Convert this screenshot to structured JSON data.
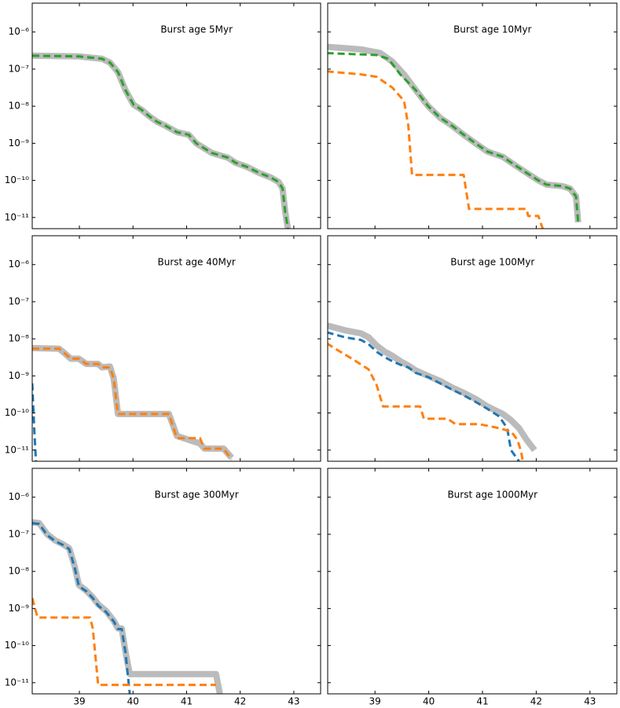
{
  "chart_data": [
    {
      "type": "line",
      "title": "Burst age 5Myr",
      "yscale": "log",
      "xlim": [
        38.12,
        43.5
      ],
      "ylim": [
        5e-12,
        6e-06
      ],
      "yticks": [
        {
          "value": 1e-06,
          "label": "10⁻⁶"
        },
        {
          "value": 1e-07,
          "label": "10⁻⁷"
        },
        {
          "value": 1e-08,
          "label": "10⁻⁸"
        },
        {
          "value": 1e-09,
          "label": "10⁻⁹"
        },
        {
          "value": 1e-10,
          "label": "10⁻¹⁰"
        },
        {
          "value": 1e-11,
          "label": "10⁻¹¹"
        }
      ],
      "series": [
        {
          "color": "#bbbbbb",
          "linestyle": "solid",
          "x": [
            38.12,
            38.99,
            39.42,
            39.57,
            39.72,
            39.86,
            40.01,
            40.16,
            40.3,
            40.45,
            40.6,
            40.82,
            41.04,
            41.18,
            41.47,
            41.77,
            41.91,
            42.13,
            42.35,
            42.57,
            42.72,
            42.79,
            42.84,
            42.89
          ],
          "values": [
            2.3e-07,
            2.2e-07,
            1.9e-07,
            1.5e-07,
            8.3e-08,
            2.7e-08,
            1.1e-08,
            8e-09,
            5.4e-09,
            3.8e-09,
            3e-09,
            2e-09,
            1.7e-09,
            1e-09,
            5.5e-10,
            4.1e-10,
            3e-10,
            2.3e-10,
            1.6e-10,
            1.2e-10,
            9e-11,
            6e-11,
            1.4e-11,
            5e-12
          ]
        },
        {
          "color": "#2ca02c",
          "linestyle": "dashed",
          "x": [
            38.12,
            38.99,
            39.42,
            39.57,
            39.72,
            39.86,
            40.01,
            40.16,
            40.3,
            40.45,
            40.6,
            40.82,
            41.04,
            41.18,
            41.47,
            41.77,
            41.91,
            42.13,
            42.35,
            42.57,
            42.72,
            42.79,
            42.84,
            42.89
          ],
          "values": [
            2.3e-07,
            2.2e-07,
            1.9e-07,
            1.5e-07,
            8.3e-08,
            2.7e-08,
            1.1e-08,
            8e-09,
            5.4e-09,
            3.8e-09,
            3e-09,
            2e-09,
            1.7e-09,
            1e-09,
            5.5e-10,
            4.1e-10,
            3e-10,
            2.3e-10,
            1.6e-10,
            1.2e-10,
            9e-11,
            6e-11,
            1.4e-11,
            5e-12
          ]
        }
      ]
    },
    {
      "type": "line",
      "title": "Burst age 10Myr",
      "yscale": "log",
      "xlim": [
        38.12,
        43.5
      ],
      "ylim": [
        5e-12,
        6e-06
      ],
      "series": [
        {
          "color": "#bbbbbb",
          "linestyle": "solid",
          "x": [
            38.1,
            38.74,
            39.1,
            39.32,
            39.54,
            39.76,
            39.99,
            40.21,
            40.43,
            40.65,
            40.87,
            41.09,
            41.38,
            41.6,
            41.82,
            42.04,
            42.19,
            42.49,
            42.63,
            42.74,
            42.78
          ],
          "values": [
            4e-07,
            3.4e-07,
            2.7e-07,
            1.6e-07,
            7.2e-08,
            2.7e-08,
            1e-08,
            4.9e-09,
            3e-09,
            1.7e-09,
            1e-09,
            6e-10,
            4.3e-10,
            2.6e-10,
            1.6e-10,
            1e-10,
            7.7e-11,
            7e-11,
            6e-11,
            3.7e-11,
            7.4e-12
          ]
        },
        {
          "color": "#2ca02c",
          "linestyle": "dashed",
          "x": [
            38.1,
            39.03,
            39.25,
            39.47,
            39.76,
            39.99,
            40.21,
            40.43,
            40.65,
            40.87,
            41.09,
            41.38,
            41.6,
            41.82,
            42.04,
            42.19,
            42.49,
            42.63,
            42.74,
            42.78
          ],
          "values": [
            2.7e-07,
            2.4e-07,
            1.9e-07,
            7.2e-08,
            2.7e-08,
            1e-08,
            4.9e-09,
            3e-09,
            1.7e-09,
            1e-09,
            6e-10,
            4.3e-10,
            2.6e-10,
            1.6e-10,
            1e-10,
            7.7e-11,
            7e-11,
            6e-11,
            3.7e-11,
            7.4e-12
          ]
        },
        {
          "color": "#ff7f0e",
          "linestyle": "dashed",
          "x": [
            38.1,
            38.74,
            39.03,
            39.32,
            39.54,
            39.62,
            39.69,
            40.65,
            40.75,
            41.82,
            41.85,
            42.04,
            42.12
          ],
          "values": [
            8.7e-08,
            7.2e-08,
            6.2e-08,
            3.2e-08,
            1.4e-08,
            3e-09,
            1.4e-10,
            1.4e-10,
            1.7e-11,
            1.7e-11,
            1.1e-11,
            1.1e-11,
            5e-12
          ]
        }
      ]
    },
    {
      "type": "line",
      "title": "Burst age 40Myr",
      "yscale": "log",
      "xlim": [
        38.12,
        43.5
      ],
      "ylim": [
        5e-12,
        6e-06
      ],
      "yticks": [
        {
          "value": 1e-06,
          "label": "10⁻⁶"
        },
        {
          "value": 1e-07,
          "label": "10⁻⁷"
        },
        {
          "value": 1e-08,
          "label": "10⁻⁸"
        },
        {
          "value": 1e-09,
          "label": "10⁻⁹"
        },
        {
          "value": 1e-10,
          "label": "10⁻¹⁰"
        },
        {
          "value": 1e-11,
          "label": "10⁻¹¹"
        }
      ],
      "series": [
        {
          "color": "#bbbbbb",
          "linestyle": "solid",
          "x": [
            38.12,
            38.62,
            38.69,
            38.84,
            38.99,
            39.13,
            39.35,
            39.42,
            39.57,
            39.64,
            39.72,
            40.67,
            40.82,
            41.25,
            41.33,
            41.69,
            41.84
          ],
          "values": [
            5.6e-09,
            5.4e-09,
            4.5e-09,
            2.9e-09,
            2.9e-09,
            2.1e-09,
            2.1e-09,
            1.7e-09,
            1.8e-09,
            8.5e-10,
            9.4e-11,
            9.4e-11,
            2.4e-11,
            1.5e-11,
            1.1e-11,
            1.1e-11,
            6.2e-12
          ]
        },
        {
          "color": "#ff7f0e",
          "linestyle": "dashed",
          "x": [
            38.12,
            38.62,
            38.69,
            38.84,
            38.99,
            39.13,
            39.35,
            39.42,
            39.57,
            39.64,
            39.72,
            40.67,
            40.82,
            41.25,
            41.33,
            41.69,
            41.84
          ],
          "values": [
            5.4e-09,
            5.4e-09,
            4.5e-09,
            2.9e-09,
            2.9e-09,
            2.1e-09,
            2.1e-09,
            1.7e-09,
            1.7e-09,
            8.5e-10,
            9.4e-11,
            9.4e-11,
            2.1e-11,
            2.1e-11,
            1.1e-11,
            1.1e-11,
            5.5e-12
          ]
        },
        {
          "color": "#1f77b4",
          "linestyle": "dashed",
          "x": [
            38.12,
            38.16,
            38.19
          ],
          "values": [
            6.3e-10,
            3.1e-11,
            5e-12
          ]
        }
      ]
    },
    {
      "type": "line",
      "title": "Burst age 100Myr",
      "yscale": "log",
      "xlim": [
        38.12,
        43.5
      ],
      "ylim": [
        5e-12,
        6e-06
      ],
      "series": [
        {
          "color": "#bbbbbb",
          "linestyle": "solid",
          "x": [
            38.1,
            38.44,
            38.74,
            38.88,
            39.03,
            39.18,
            39.32,
            39.47,
            39.62,
            39.76,
            39.99,
            40.21,
            40.43,
            40.65,
            40.87,
            41.09,
            41.38,
            41.53,
            41.68,
            41.82,
            41.97
          ],
          "values": [
            2.3e-08,
            1.7e-08,
            1.4e-08,
            1.1e-08,
            6.6e-09,
            4.5e-09,
            3.5e-09,
            2.5e-09,
            1.9e-09,
            1.4e-09,
            1e-09,
            7.3e-10,
            4.9e-10,
            3.5e-10,
            2.4e-10,
            1.5e-10,
            9.4e-11,
            6.4e-11,
            3.9e-11,
            1.9e-11,
            1e-11
          ]
        },
        {
          "color": "#1f77b4",
          "linestyle": "dashed",
          "x": [
            38.1,
            38.44,
            38.74,
            38.88,
            39.03,
            39.18,
            39.32,
            39.47,
            39.62,
            39.76,
            39.99,
            40.21,
            40.43,
            40.65,
            40.87,
            41.09,
            41.31,
            41.46,
            41.53,
            41.68
          ],
          "values": [
            1.5e-08,
            1.1e-08,
            9.3e-09,
            7.2e-09,
            4.5e-09,
            3.2e-09,
            2.5e-09,
            2e-09,
            1.7e-09,
            1.2e-09,
            9.3e-10,
            6.3e-10,
            4.3e-10,
            3e-10,
            2e-10,
            1.3e-10,
            8.1e-11,
            3.9e-11,
            1e-11,
            5e-12
          ]
        },
        {
          "color": "#ff7f0e",
          "linestyle": "dashed",
          "x": [
            38.1,
            38.29,
            38.59,
            38.88,
            39.03,
            39.15,
            39.84,
            39.91,
            40.35,
            40.5,
            40.94,
            41.24,
            41.53,
            41.65,
            41.72,
            41.75
          ],
          "values": [
            7.6e-09,
            5.1e-09,
            2.8e-09,
            1.5e-09,
            5.7e-10,
            1.5e-10,
            1.5e-10,
            7e-11,
            7e-11,
            5e-11,
            5e-11,
            4.1e-11,
            3.2e-11,
            1.9e-11,
            9e-12,
            5e-12
          ]
        }
      ]
    },
    {
      "type": "line",
      "title": "Burst age 300Myr",
      "yscale": "log",
      "xlim": [
        38.12,
        43.5
      ],
      "ylim": [
        5e-12,
        6e-06
      ],
      "xticks": [
        39,
        40,
        41,
        42,
        43
      ],
      "yticks": [
        {
          "value": 1e-06,
          "label": "10⁻⁶"
        },
        {
          "value": 1e-07,
          "label": "10⁻⁷"
        },
        {
          "value": 1e-08,
          "label": "10⁻⁸"
        },
        {
          "value": 1e-09,
          "label": "10⁻⁹"
        },
        {
          "value": 1e-10,
          "label": "10⁻¹⁰"
        },
        {
          "value": 1e-11,
          "label": "10⁻¹¹"
        }
      ],
      "series": [
        {
          "color": "#bbbbbb",
          "linestyle": "solid",
          "x": [
            38.12,
            38.25,
            38.4,
            38.55,
            38.69,
            38.81,
            38.91,
            38.99,
            39.13,
            39.25,
            39.35,
            39.5,
            39.64,
            39.72,
            39.79,
            39.86,
            39.94,
            41.55,
            41.62
          ],
          "values": [
            2.1e-07,
            2e-07,
            1e-07,
            6.8e-08,
            5.4e-08,
            4.2e-08,
            1.4e-08,
            4.3e-09,
            3e-09,
            2e-09,
            1.3e-09,
            8.5e-10,
            4.7e-10,
            2.9e-10,
            2.9e-10,
            6.7e-11,
            1.7e-11,
            1.7e-11,
            5e-12
          ]
        },
        {
          "color": "#1f77b4",
          "linestyle": "dashed",
          "x": [
            38.12,
            38.25,
            38.4,
            38.55,
            38.69,
            38.81,
            38.91,
            38.99,
            39.13,
            39.25,
            39.35,
            39.5,
            39.64,
            39.72,
            39.79,
            39.86,
            39.94
          ],
          "values": [
            2e-07,
            1.9e-07,
            9.5e-08,
            6.5e-08,
            5.2e-08,
            4e-08,
            1.3e-08,
            4e-09,
            2.9e-09,
            1.9e-09,
            1.2e-09,
            8e-10,
            4.5e-10,
            2.8e-10,
            2.8e-10,
            6.5e-11,
            5e-12
          ]
        },
        {
          "color": "#ff7f0e",
          "linestyle": "dashed",
          "x": [
            38.12,
            38.22,
            39.2,
            39.25,
            39.35,
            41.55
          ],
          "values": [
            1.9e-09,
            5.7e-10,
            5.7e-10,
            2.9e-10,
            8.7e-12,
            8.7e-12
          ]
        }
      ]
    },
    {
      "type": "line",
      "title": "Burst age 1000Myr",
      "yscale": "log",
      "xlim": [
        38.12,
        43.5
      ],
      "ylim": [
        5e-12,
        6e-06
      ],
      "xticks": [
        39,
        40,
        41,
        42,
        43
      ],
      "series": []
    }
  ]
}
